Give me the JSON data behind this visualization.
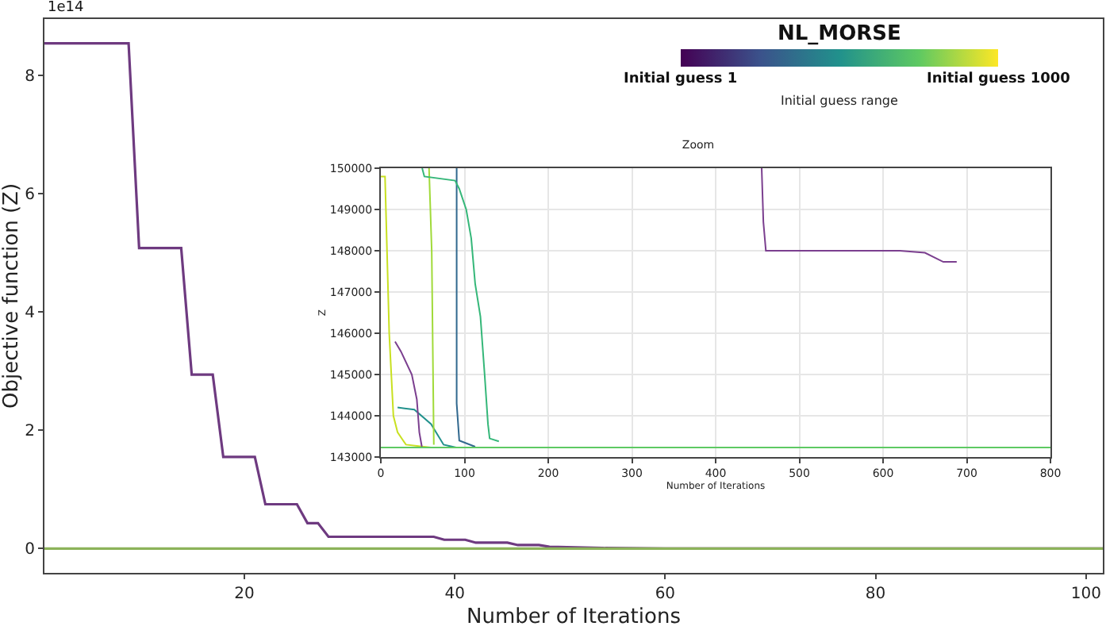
{
  "chart_data": [
    {
      "type": "line",
      "title": "NL_MORSE",
      "xlabel": "Number of Iterations",
      "ylabel": "Objective function (Z)",
      "clabel": "Initial guess range",
      "annotations": [
        "1e14",
        "Initial guess 1",
        "Initial guess 1000"
      ],
      "xlim": [
        1,
        101.6
      ],
      "xticks": [
        20,
        40,
        60,
        80,
        100
      ],
      "ylim": [
        -0.41,
        8.95
      ],
      "yticks": [
        0,
        2,
        4,
        6,
        8
      ],
      "grid": false,
      "series": [
        {
          "color": "#6e3a80",
          "x": [
            1,
            9,
            10,
            14,
            15,
            17,
            18,
            21,
            22,
            25,
            26,
            27,
            28,
            38,
            39,
            41,
            42,
            45,
            46,
            48,
            49,
            54,
            60,
            101.6
          ],
          "values": [
            8.54,
            8.54,
            5.08,
            5.08,
            2.94,
            2.94,
            1.55,
            1.55,
            0.75,
            0.75,
            0.43,
            0.43,
            0.2,
            0.2,
            0.15,
            0.15,
            0.1,
            0.1,
            0.06,
            0.06,
            0.03,
            0.01,
            0,
            0
          ]
        },
        {
          "color": "#8cb35a",
          "x": [
            1,
            101.6
          ],
          "values": [
            0,
            0
          ]
        }
      ]
    },
    {
      "type": "line",
      "title": "Zoom",
      "xlabel": "Number of Iterations",
      "ylabel": "Z",
      "xlim": [
        0,
        800
      ],
      "xticks": [
        0,
        100,
        200,
        300,
        400,
        500,
        600,
        700,
        800
      ],
      "ylim": [
        143000,
        150000
      ],
      "yticks": [
        143000,
        144000,
        145000,
        146000,
        147000,
        148000,
        149000,
        150000
      ],
      "grid": true,
      "series": [
        {
          "color": "#c8e020",
          "x": [
            0,
            5,
            10,
            15,
            20,
            30,
            60
          ],
          "values": [
            149800,
            149800,
            146000,
            144000,
            143600,
            143300,
            143230
          ]
        },
        {
          "color": "#21918c",
          "x": [
            20,
            40,
            60,
            75,
            90
          ],
          "values": [
            144200,
            144150,
            143800,
            143300,
            143230
          ]
        },
        {
          "color": "#7b3f8f",
          "x": [
            17,
            24,
            37,
            43,
            46,
            49
          ],
          "values": [
            145800,
            145560,
            145000,
            144400,
            143600,
            143250
          ]
        },
        {
          "color": "#a0da39",
          "x": [
            57.6,
            60.8,
            63.3
          ],
          "values": [
            150000,
            148000,
            143300
          ]
        },
        {
          "color": "#31688e",
          "x": [
            90.6,
            90.6,
            93.7,
            112.7
          ],
          "values": [
            150000,
            144300,
            143400,
            143250
          ]
        },
        {
          "color": "#35b779",
          "x": [
            49.4,
            52,
            88.7,
            93.7,
            102,
            108,
            112.7,
            119,
            124,
            128,
            130,
            141
          ],
          "values": [
            150000,
            149800,
            149700,
            149500,
            149000,
            148300,
            147200,
            146400,
            145000,
            143800,
            143450,
            143380
          ]
        },
        {
          "color": "#7b3f8f",
          "x": [
            455,
            457,
            460,
            620,
            650,
            672,
            688
          ],
          "values": [
            150000,
            148700,
            148000,
            148000,
            147950,
            147730,
            147730
          ]
        },
        {
          "color": "#5ec962",
          "x": [
            0,
            800
          ],
          "values": [
            143230,
            143230
          ]
        }
      ]
    }
  ]
}
